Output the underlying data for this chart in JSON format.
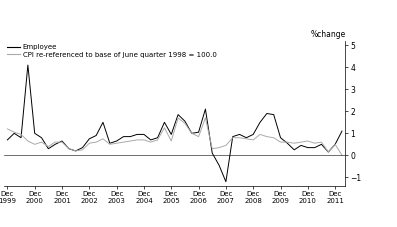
{
  "title": "",
  "ylabel": "%change",
  "ylim": [
    -1.4,
    5.2
  ],
  "yticks": [
    -1,
    0,
    1,
    2,
    3,
    4,
    5
  ],
  "legend_employee": "Employee",
  "legend_cpi": "CPI re-referenced to base of June quarter 1998 = 100.0",
  "employee_color": "#000000",
  "cpi_color": "#aaaaaa",
  "background_color": "#ffffff",
  "x_labels": [
    "Dec\n1999",
    "Dec\n2000",
    "Dec\n2001",
    "Dec\n2002",
    "Dec\n2003",
    "Dec\n2004",
    "Dec\n2005",
    "Dec\n2006",
    "Dec\n2007",
    "Dec\n2008",
    "Dec\n2009",
    "Dec\n2010",
    "Dec\n2011"
  ],
  "employee_data": [
    0.7,
    1.0,
    0.8,
    4.1,
    1.0,
    0.8,
    0.3,
    0.5,
    0.65,
    0.3,
    0.2,
    0.35,
    0.75,
    0.9,
    1.5,
    0.55,
    0.65,
    0.85,
    0.85,
    0.95,
    0.95,
    0.7,
    0.8,
    1.5,
    0.95,
    1.85,
    1.55,
    1.0,
    1.05,
    2.1,
    0.1,
    -0.45,
    -1.2,
    0.85,
    0.95,
    0.8,
    0.95,
    1.5,
    1.9,
    1.85,
    0.8,
    0.55,
    0.25,
    0.45,
    0.35,
    0.35,
    0.5,
    0.15,
    0.5,
    1.1
  ],
  "cpi_data": [
    1.2,
    1.05,
    0.95,
    0.65,
    0.5,
    0.6,
    0.4,
    0.6,
    0.6,
    0.3,
    0.2,
    0.25,
    0.55,
    0.6,
    0.75,
    0.5,
    0.55,
    0.6,
    0.65,
    0.7,
    0.7,
    0.6,
    0.7,
    1.25,
    0.65,
    1.7,
    1.45,
    1.0,
    0.85,
    1.7,
    0.3,
    0.35,
    0.45,
    0.8,
    0.8,
    0.75,
    0.7,
    0.95,
    0.85,
    0.8,
    0.6,
    0.6,
    0.55,
    0.6,
    0.65,
    0.55,
    0.6,
    0.15,
    0.5,
    0.0
  ],
  "figwidth": 3.97,
  "figheight": 2.27,
  "dpi": 100
}
